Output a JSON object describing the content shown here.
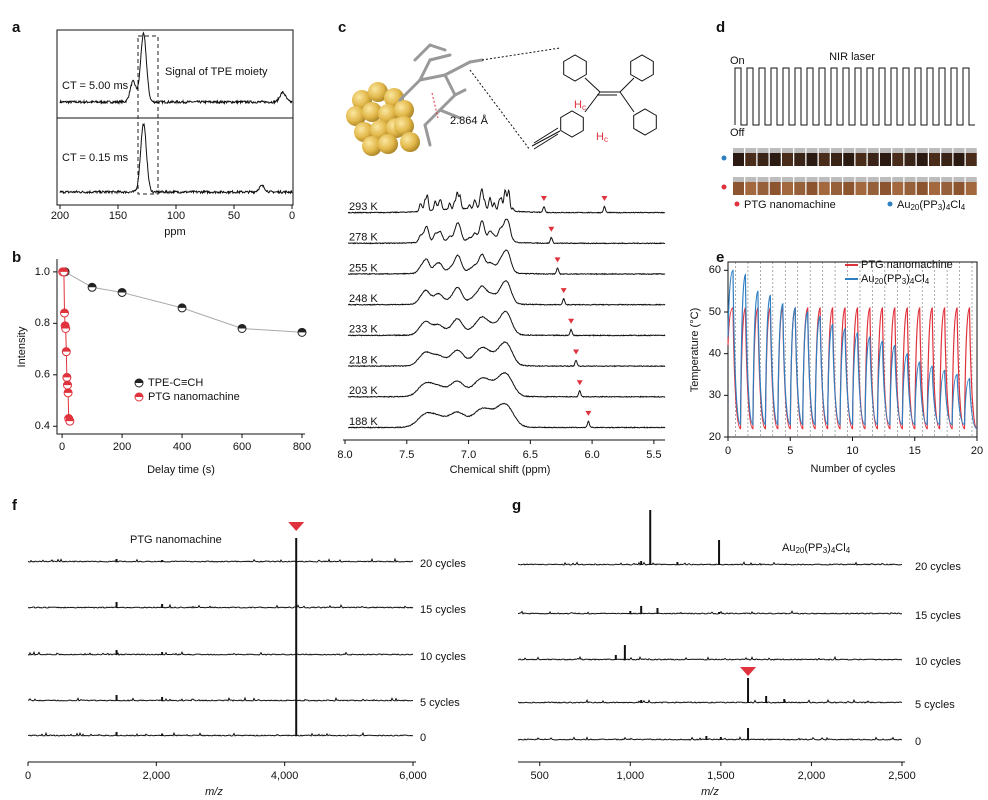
{
  "chart_data": [
    {
      "type": "spectrum",
      "panel": "a",
      "annotation": "Signal of TPE moiety",
      "xlabel": "ppm",
      "xlim": [
        200,
        0
      ],
      "xticks": [
        200,
        150,
        100,
        50,
        0
      ],
      "traces": [
        {
          "name": "CT = 5.00 ms",
          "peaks": [
            {
              "x": 128,
              "height": 100
            },
            {
              "x": 137,
              "height": 30
            },
            {
              "x": 8,
              "height": 14
            }
          ]
        },
        {
          "name": "CT = 0.15 ms",
          "peaks": [
            {
              "x": 128,
              "height": 100
            },
            {
              "x": 26,
              "height": 9
            }
          ]
        }
      ]
    },
    {
      "type": "scatter",
      "panel": "b",
      "xlabel": "Delay time (s)",
      "ylabel": "Intensity",
      "xlim": [
        -17,
        810
      ],
      "xticks": [
        0,
        200,
        400,
        600,
        800
      ],
      "ylim": [
        0.37,
        1.05
      ],
      "yticks": [
        0.4,
        0.6,
        0.8,
        {
          "value": 1,
          "label": "1.0"
        }
      ],
      "series": [
        {
          "name": "TPE-C≡CH",
          "color": "#222222",
          "x": [
            10,
            100,
            200,
            400,
            600,
            800
          ],
          "values": [
            1.0,
            0.94,
            0.92,
            0.86,
            0.78,
            0.765
          ]
        },
        {
          "name": "PTG nanomachine",
          "color": "#e0323c",
          "x": [
            2,
            6,
            8,
            10,
            12,
            14,
            16,
            18,
            20,
            22,
            26
          ],
          "values": [
            1.0,
            1.0,
            0.84,
            0.79,
            0.78,
            0.69,
            0.59,
            0.56,
            0.53,
            0.43,
            0.42
          ]
        }
      ]
    },
    {
      "type": "nmr",
      "panel": "c",
      "xlabel": "Chemical shift (ppm)",
      "distance": "2.864 Å",
      "proton_labels": [
        "Hc",
        "Hc"
      ],
      "xlim": [
        8.0,
        5.41
      ],
      "xticks": [
        {
          "value": 8,
          "label": "8.0"
        },
        7.5,
        {
          "value": 7,
          "label": "7.0"
        },
        6.5,
        {
          "value": 6,
          "label": "6.0"
        },
        5.5
      ],
      "traces": [
        {
          "name": "293 K",
          "markers": [
            6.39,
            5.9
          ]
        },
        {
          "name": "278 K",
          "markers": [
            6.33
          ]
        },
        {
          "name": "255 K",
          "markers": [
            6.28
          ]
        },
        {
          "name": "248 K",
          "markers": [
            6.23
          ]
        },
        {
          "name": "233 K",
          "markers": [
            6.17
          ]
        },
        {
          "name": "218 K",
          "markers": [
            6.13
          ]
        },
        {
          "name": "203 K",
          "markers": [
            6.1
          ]
        },
        {
          "name": "188 K",
          "markers": [
            6.03
          ]
        }
      ]
    },
    {
      "type": "laser",
      "panel": "d",
      "title": "NIR laser",
      "on": "On",
      "off": "Off",
      "cycles": 20,
      "legend": [
        {
          "name": "PTG nanomachine",
          "color": "#e0323c"
        },
        {
          "name": "Au20(PP3)4Cl4",
          "color": "#2f7fc1"
        }
      ]
    },
    {
      "type": "line",
      "panel": "e",
      "xlabel": "Number of cycles",
      "ylabel": "Temperature (°C)",
      "xlim": [
        0,
        20
      ],
      "xticks": [
        0,
        5,
        10,
        15,
        20
      ],
      "ylim": [
        20,
        62
      ],
      "yticks": [
        20,
        30,
        40,
        50,
        60
      ],
      "x": [
        0,
        0.4,
        1,
        1.4,
        2,
        2.4,
        3,
        3.4,
        4,
        4.4,
        5,
        5.4,
        6,
        6.4,
        7,
        7.4,
        8,
        8.4,
        9,
        9.4,
        10,
        10.4,
        11,
        11.4,
        12,
        12.4,
        13,
        13.4,
        14,
        14.4,
        15,
        15.4,
        16,
        16.4,
        17,
        17.4,
        18,
        18.4,
        19,
        19.4,
        20
      ],
      "series": [
        {
          "name": "PTG nanomachine",
          "color": "#e0323c",
          "values": [
            42,
            51,
            22,
            51,
            22,
            51,
            22,
            51,
            22,
            51,
            22,
            51,
            22,
            51,
            22,
            51,
            22,
            51,
            22,
            51,
            22,
            51,
            22,
            51,
            22,
            51,
            22,
            51,
            22,
            51,
            22,
            51,
            22,
            51,
            22,
            51,
            22,
            51,
            22,
            51,
            22
          ]
        },
        {
          "name": "Au20(PP3)4Cl4",
          "color": "#2f7fc1",
          "values": [
            44,
            60,
            23,
            59,
            23,
            55,
            23,
            54,
            23,
            52,
            23,
            51,
            23,
            50,
            23,
            49,
            23,
            47,
            23,
            46,
            23,
            45,
            23,
            44,
            23,
            43,
            23,
            42,
            23,
            40,
            23,
            38,
            23,
            37,
            23,
            36,
            23,
            35,
            23,
            34,
            22
          ]
        }
      ]
    },
    {
      "type": "ms",
      "panel": "f",
      "annotation": "PTG nanomachine",
      "xlabel": "m/z",
      "marker": 4180,
      "xlim": [
        0,
        6000
      ],
      "xticks": [
        0,
        {
          "value": 2000,
          "label": "2,000"
        },
        {
          "value": 4000,
          "label": "4,000"
        },
        {
          "value": 6000,
          "label": "6,000"
        }
      ],
      "traces": [
        {
          "name": "20 cycles",
          "peaks": [
            {
              "x": 4180,
              "height": 48
            },
            {
              "x": 1380,
              "height": 6
            },
            {
              "x": 2090,
              "height": 4
            }
          ]
        },
        {
          "name": "15 cycles",
          "peaks": [
            {
              "x": 4180,
              "height": 92
            },
            {
              "x": 1380,
              "height": 12
            },
            {
              "x": 2090,
              "height": 8
            }
          ]
        },
        {
          "name": "10 cycles",
          "peaks": [
            {
              "x": 4180,
              "height": 94
            },
            {
              "x": 1380,
              "height": 10
            },
            {
              "x": 2090,
              "height": 6
            }
          ]
        },
        {
          "name": "5 cycles",
          "peaks": [
            {
              "x": 4180,
              "height": 92
            },
            {
              "x": 1380,
              "height": 12
            },
            {
              "x": 2090,
              "height": 8
            }
          ]
        },
        {
          "name": "0",
          "peaks": [
            {
              "x": 4180,
              "height": 70
            },
            {
              "x": 1380,
              "height": 8
            },
            {
              "x": 2090,
              "height": 5
            }
          ]
        }
      ]
    },
    {
      "type": "ms",
      "panel": "g",
      "annotation": "Au20(PP3)4Cl4",
      "xlabel": "m/z",
      "marker": 1650,
      "xlim": [
        380,
        2500
      ],
      "xticks": [
        500,
        {
          "value": 1000,
          "label": "1,000"
        },
        {
          "value": 1500,
          "label": "1,500"
        },
        {
          "value": 2000,
          "label": "2,000"
        },
        {
          "value": 2500,
          "label": "2,500"
        }
      ],
      "traces": [
        {
          "name": "20 cycles",
          "peaks": [
            {
              "x": 1110,
              "height": 110
            },
            {
              "x": 1490,
              "height": 50
            },
            {
              "x": 1060,
              "height": 8
            },
            {
              "x": 1260,
              "height": 6
            }
          ]
        },
        {
          "name": "15 cycles",
          "peaks": [
            {
              "x": 1060,
              "height": 16
            },
            {
              "x": 1150,
              "height": 12
            },
            {
              "x": 1000,
              "height": 6
            },
            {
              "x": 1490,
              "height": 4
            }
          ]
        },
        {
          "name": "10 cycles",
          "peaks": [
            {
              "x": 970,
              "height": 30
            },
            {
              "x": 920,
              "height": 10
            }
          ]
        },
        {
          "name": "5 cycles",
          "peaks": [
            {
              "x": 1650,
              "height": 50
            },
            {
              "x": 1750,
              "height": 14
            },
            {
              "x": 1850,
              "height": 8
            },
            {
              "x": 1060,
              "height": 6
            }
          ]
        },
        {
          "name": "0",
          "peaks": [
            {
              "x": 1650,
              "height": 24
            },
            {
              "x": 1420,
              "height": 8
            },
            {
              "x": 1500,
              "height": 6
            }
          ]
        }
      ]
    }
  ]
}
